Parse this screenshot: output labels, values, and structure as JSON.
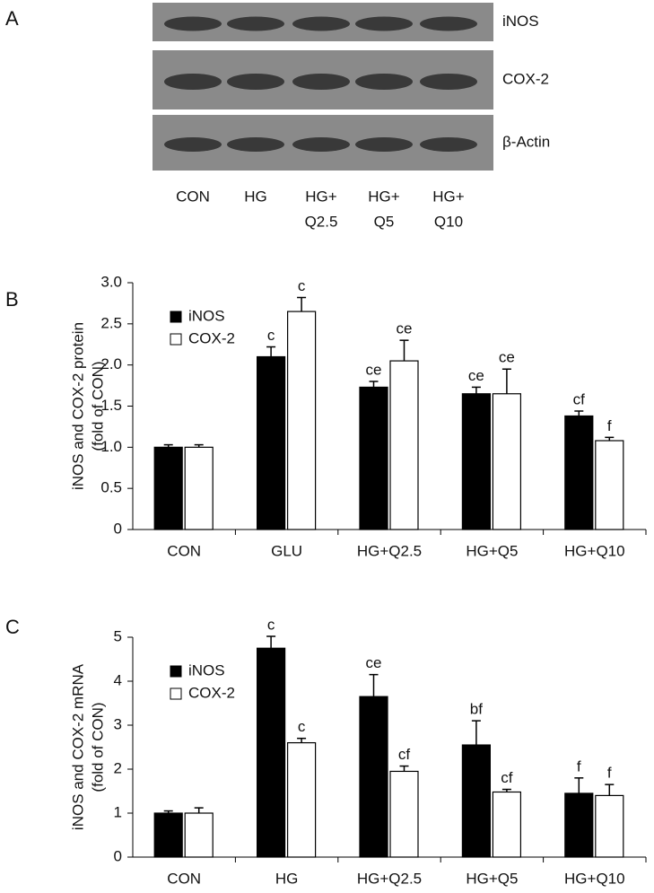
{
  "blot": {
    "panel_label": "A",
    "rows": [
      "iNOS",
      "COX-2",
      "β-Actin"
    ],
    "lanes": [
      [
        "CON"
      ],
      [
        "HG"
      ],
      [
        "HG+",
        "Q2.5"
      ],
      [
        "HG+",
        "Q5"
      ],
      [
        "HG+",
        "Q10"
      ]
    ]
  },
  "chart_data": [
    {
      "type": "bar",
      "panel_label": "B",
      "ylabel": [
        "iNOS and COX-2 protein",
        "(fold of CON)"
      ],
      "categories": [
        "CON",
        "GLU",
        "HG+Q2.5",
        "HG+Q5",
        "HG+Q10"
      ],
      "ylim": [
        0,
        3
      ],
      "yticks": [
        0,
        0.5,
        {
          "value": 1,
          "label": "1.0"
        },
        1.5,
        {
          "value": 2,
          "label": "2.0"
        },
        2.5,
        {
          "value": 3,
          "label": "3.0"
        }
      ],
      "legend": "upper left",
      "series": [
        {
          "name": "iNOS",
          "color": "#000000",
          "values": [
            1.0,
            2.1,
            1.73,
            1.65,
            1.38
          ],
          "errors": [
            0.03,
            0.12,
            0.07,
            0.08,
            0.06
          ],
          "annotations": [
            null,
            "c",
            "ce",
            "ce",
            "cf"
          ]
        },
        {
          "name": "COX-2",
          "color": "#ffffff",
          "values": [
            1.0,
            2.65,
            2.05,
            1.65,
            1.08
          ],
          "errors": [
            0.03,
            0.17,
            0.25,
            0.3,
            0.04
          ],
          "annotations": [
            null,
            "c",
            "ce",
            "ce",
            "f"
          ]
        }
      ]
    },
    {
      "type": "bar",
      "panel_label": "C",
      "ylabel": [
        "iNOS and COX-2 mRNA",
        "(fold of CON)"
      ],
      "categories": [
        "CON",
        "HG",
        "HG+Q2.5",
        "HG+Q5",
        "HG+Q10"
      ],
      "ylim": [
        0,
        5
      ],
      "yticks": [
        0,
        1,
        2,
        3,
        4,
        5
      ],
      "legend": "upper left",
      "series": [
        {
          "name": "iNOS",
          "color": "#000000",
          "values": [
            1.0,
            4.75,
            3.65,
            2.55,
            1.45
          ],
          "errors": [
            0.05,
            0.27,
            0.5,
            0.55,
            0.35
          ],
          "annotations": [
            null,
            "c",
            "ce",
            "bf",
            "f"
          ]
        },
        {
          "name": "COX-2",
          "color": "#ffffff",
          "values": [
            1.0,
            2.6,
            1.95,
            1.48,
            1.4
          ],
          "errors": [
            0.12,
            0.1,
            0.12,
            0.06,
            0.25
          ],
          "annotations": [
            null,
            "c",
            "cf",
            "cf",
            "f"
          ]
        }
      ]
    }
  ]
}
